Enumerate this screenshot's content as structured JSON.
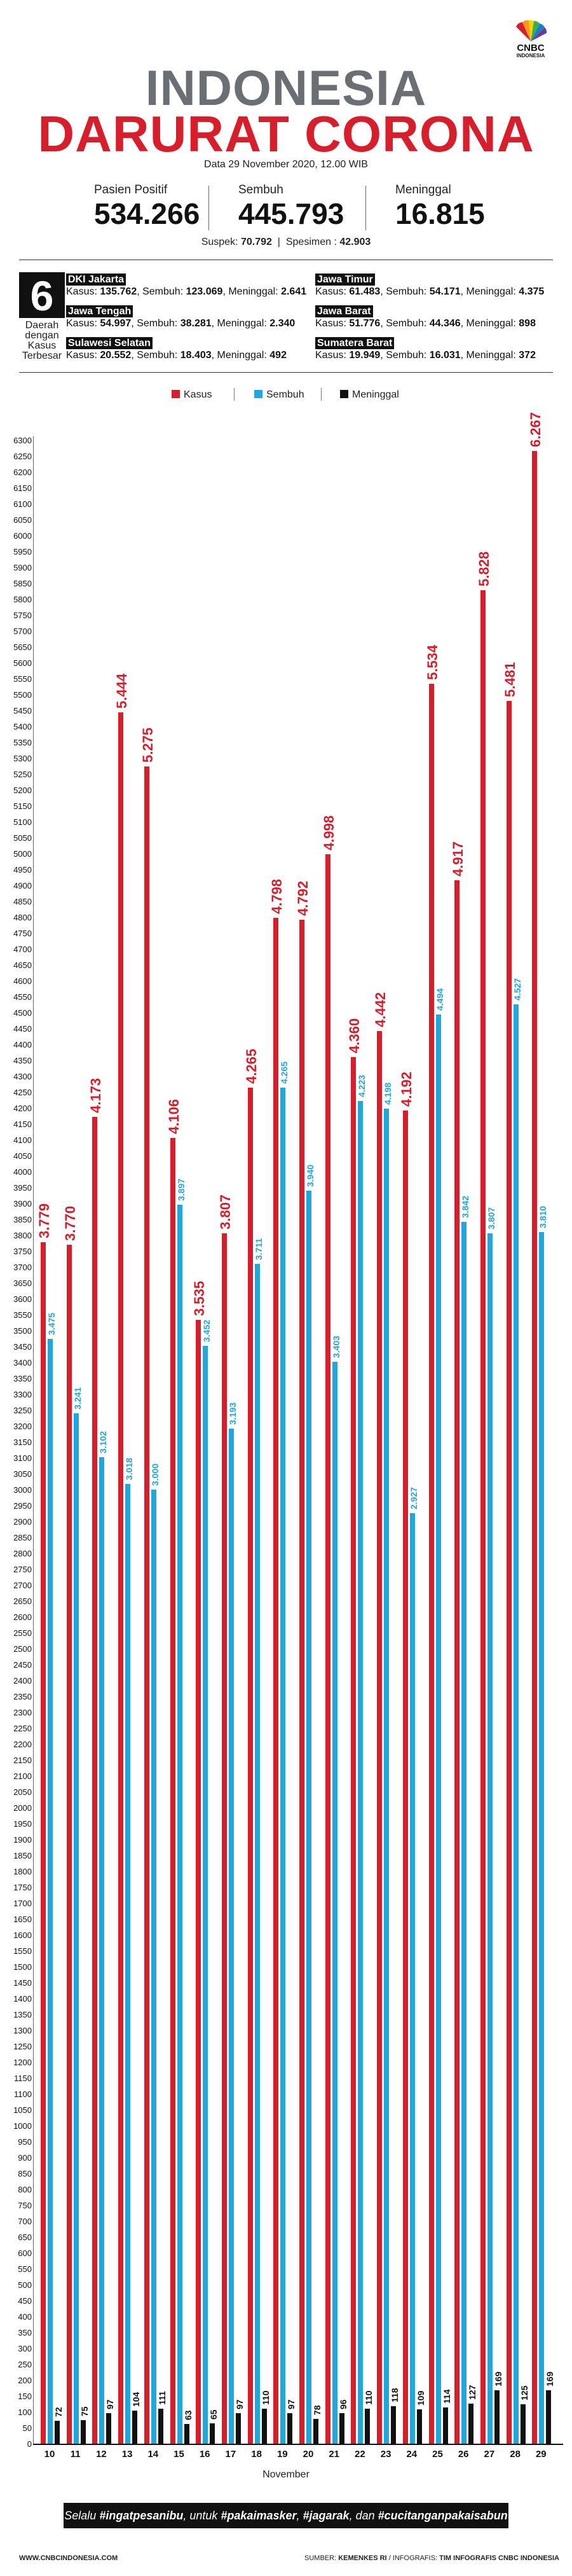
{
  "logo": {
    "line1": "CNBC",
    "line2": "INDONESIA"
  },
  "header": {
    "title_line1": "INDONESIA",
    "title_line2": "DARURAT CORONA",
    "date": "Data 29 November 2020, 12.00 WIB"
  },
  "stats": [
    {
      "label": "Pasien Positif",
      "value": "534.266"
    },
    {
      "label": "Sembuh",
      "value": "445.793"
    },
    {
      "label": "Meninggal",
      "value": "16.815"
    }
  ],
  "suspect": {
    "suspek_label": "Suspek:",
    "suspek_value": "70.792",
    "separator": "|",
    "spesimen_label": "Spesimen :",
    "spesimen_value": "42.903"
  },
  "regions_header": {
    "number": "6",
    "caption": "Daerah dengan Kasus Terbesar"
  },
  "regions": [
    {
      "name": "DKI Jakarta",
      "kasus": "135.762",
      "sembuh": "123.069",
      "meninggal": "2.641"
    },
    {
      "name": "Jawa Timur",
      "kasus": "61.483",
      "sembuh": "54.171",
      "meninggal": "4.375"
    },
    {
      "name": "Jawa Tengah",
      "kasus": "54.997",
      "sembuh": "38.281",
      "meninggal": "2.340"
    },
    {
      "name": "Jawa Barat",
      "kasus": "51.776",
      "sembuh": "44.346",
      "meninggal": "898"
    },
    {
      "name": "Sulawesi Selatan",
      "kasus": "20.552",
      "sembuh": "18.403",
      "meninggal": "492"
    },
    {
      "name": "Sumatera Barat",
      "kasus": "19.949",
      "sembuh": "16.031",
      "meninggal": "372"
    }
  ],
  "region_labels": {
    "kasus": "Kasus:",
    "sembuh": "Sembuh:",
    "meninggal": "Meninggal:"
  },
  "colors": {
    "kasus": "#d81e2b",
    "sembuh": "#1fa7e0",
    "meninggal": "#111111"
  },
  "chart_data": {
    "type": "bar",
    "title": "",
    "xlabel": "November",
    "ylabel": "",
    "ylim": [
      0,
      6300
    ],
    "ytick_step": 50,
    "legend": [
      "Kasus",
      "Sembuh",
      "Meninggal"
    ],
    "legend_position": "top",
    "categories": [
      "10",
      "11",
      "12",
      "13",
      "14",
      "15",
      "16",
      "17",
      "18",
      "19",
      "20",
      "21",
      "22",
      "23",
      "24",
      "25",
      "26",
      "27",
      "28",
      "29"
    ],
    "series": [
      {
        "name": "Kasus",
        "values": [
          3779,
          3770,
          4173,
          5444,
          5275,
          4106,
          3535,
          3807,
          4265,
          4798,
          4792,
          4998,
          4360,
          4442,
          4192,
          5534,
          4917,
          5828,
          5481,
          6267
        ],
        "labels": [
          "3.779",
          "3.770",
          "4.173",
          "5.444",
          "5.275",
          "4.106",
          "3.535",
          "3.807",
          "4.265",
          "4.798",
          "4.792",
          "4.998",
          "4.360",
          "4.442",
          "4.192",
          "5.534",
          "4.917",
          "5.828",
          "5.481",
          "6.267"
        ]
      },
      {
        "name": "Sembuh",
        "values": [
          3475,
          3241,
          3102,
          3018,
          3000,
          3897,
          3452,
          3193,
          3711,
          4265,
          3940,
          3403,
          4223,
          4198,
          2927,
          4494,
          3842,
          3807,
          4527,
          3810
        ],
        "labels": [
          "3.475",
          "3.241",
          "3.102",
          "3.018",
          "3.000",
          "3.897",
          "3.452",
          "3.193",
          "3.711",
          "4.265",
          "3.940",
          "3.403",
          "4.223",
          "4.198",
          "2.927",
          "4.494",
          "3.842",
          "3.807",
          "4.527",
          "3.810"
        ]
      },
      {
        "name": "Meninggal",
        "values": [
          72,
          75,
          97,
          104,
          111,
          63,
          65,
          97,
          110,
          97,
          78,
          96,
          110,
          118,
          109,
          114,
          127,
          169,
          125,
          169
        ],
        "labels": [
          "72",
          "75",
          "97",
          "104",
          "111",
          "63",
          "65",
          "97",
          "110",
          "97",
          "78",
          "96",
          "110",
          "118",
          "109",
          "114",
          "127",
          "169",
          "125",
          "169"
        ]
      }
    ]
  },
  "footer": {
    "banner": {
      "p1": "Selalu ",
      "h1": "#ingatpesanibu",
      "p2": ", untuk ",
      "h2": "#pakaimasker",
      "p3": ", ",
      "h3": "#jagarak",
      "p4": ", dan ",
      "h4": "#cucitanganpakaisabun"
    },
    "website": "WWW.CNBCINDONESIA.COM",
    "source_label": "SUMBER:",
    "source_value": "KEMENKES RI",
    "infographic_label": "/ INFOGRAFIS:",
    "infographic_value": "TIM INFOGRAFIS CNBC INDONESIA"
  }
}
